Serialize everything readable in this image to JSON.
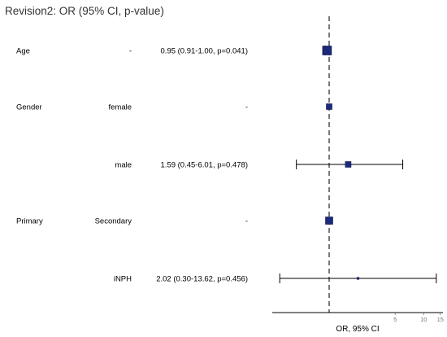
{
  "colors": {
    "marker": "#1b2a7a",
    "marker_edge": "#0c1550",
    "ci_line": "#000000",
    "ref_line": "#333333",
    "tick_label": "#777777",
    "title": "#333333"
  },
  "chart_data": {
    "type": "forest",
    "title": "Revision2: OR (95% CI, p-value)",
    "xlabel": "OR, 95% CI",
    "x_scale": "log",
    "xlim": [
      0.25,
      16
    ],
    "reference_line": 1,
    "x_ticks": [
      {
        "value": 5,
        "label": "5"
      },
      {
        "value": 10,
        "label": "10"
      },
      {
        "value": 15,
        "label": "15"
      }
    ],
    "rows": [
      {
        "variable": "Age",
        "level": "-",
        "estimate_text": "0.95 (0.91-1.00, p=0.041)",
        "or": 0.95,
        "lower": 0.91,
        "upper": 1.0,
        "reference": false,
        "marker_size": "large"
      },
      {
        "variable": "Gender",
        "level": "female",
        "estimate_text": "-",
        "or": 1,
        "lower": null,
        "upper": null,
        "reference": true,
        "marker_size": "small"
      },
      {
        "variable": "",
        "level": "male",
        "estimate_text": "1.59 (0.45-6.01, p=0.478)",
        "or": 1.59,
        "lower": 0.45,
        "upper": 6.01,
        "reference": false,
        "marker_size": "small"
      },
      {
        "variable": "Primary",
        "level": "Secondary",
        "estimate_text": "-",
        "or": 1,
        "lower": null,
        "upper": null,
        "reference": true,
        "marker_size": "medium"
      },
      {
        "variable": "",
        "level": "iNPH",
        "estimate_text": "2.02 (0.30-13.62, p=0.456)",
        "or": 2.02,
        "lower": 0.3,
        "upper": 13.62,
        "reference": false,
        "marker_size": "tiny"
      }
    ]
  }
}
